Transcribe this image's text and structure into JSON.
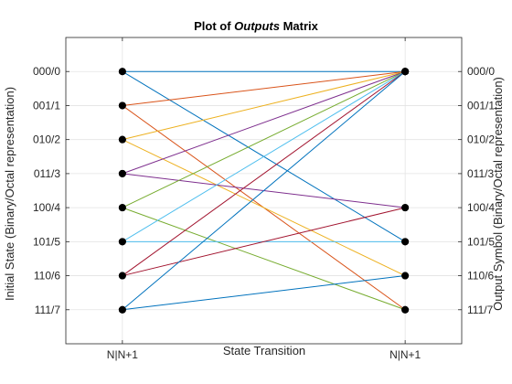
{
  "chart_data": {
    "type": "line",
    "title_prefix": "Plot of ",
    "title_emph": "Outputs",
    "title_suffix": " Matrix",
    "xlabel": "State Transition",
    "ylabel_left": "Initial State (Binary/Octal representation)",
    "ylabel_right": "Output Symbol (Binary/Octal representation)",
    "x_ticks": [
      {
        "value": 1,
        "label": "N|N+1"
      },
      {
        "value": 2,
        "label": "N|N+1"
      }
    ],
    "xlim": [
      0.8,
      2.2
    ],
    "ylim": [
      -1,
      8
    ],
    "y_reversed": true,
    "grid": true,
    "y_tick_labels": [
      "000/0",
      "001/1",
      "010/2",
      "011/3",
      "100/4",
      "101/5",
      "110/6",
      "111/7"
    ],
    "series": [
      {
        "color": "#0072BD",
        "from": 0,
        "to": 0
      },
      {
        "color": "#0072BD",
        "from": 0,
        "to": 5
      },
      {
        "color": "#D95319",
        "from": 1,
        "to": 0
      },
      {
        "color": "#D95319",
        "from": 1,
        "to": 7
      },
      {
        "color": "#EDB120",
        "from": 2,
        "to": 0
      },
      {
        "color": "#EDB120",
        "from": 2,
        "to": 6
      },
      {
        "color": "#7E2F8E",
        "from": 3,
        "to": 0
      },
      {
        "color": "#7E2F8E",
        "from": 3,
        "to": 4
      },
      {
        "color": "#77AC30",
        "from": 4,
        "to": 0
      },
      {
        "color": "#77AC30",
        "from": 4,
        "to": 7
      },
      {
        "color": "#4DBEEE",
        "from": 5,
        "to": 0
      },
      {
        "color": "#4DBEEE",
        "from": 5,
        "to": 5
      },
      {
        "color": "#A2142F",
        "from": 6,
        "to": 0
      },
      {
        "color": "#A2142F",
        "from": 6,
        "to": 4
      },
      {
        "color": "#0072BD",
        "from": 7,
        "to": 0
      },
      {
        "color": "#0072BD",
        "from": 7,
        "to": 6
      }
    ],
    "marker_color": "#000000"
  }
}
